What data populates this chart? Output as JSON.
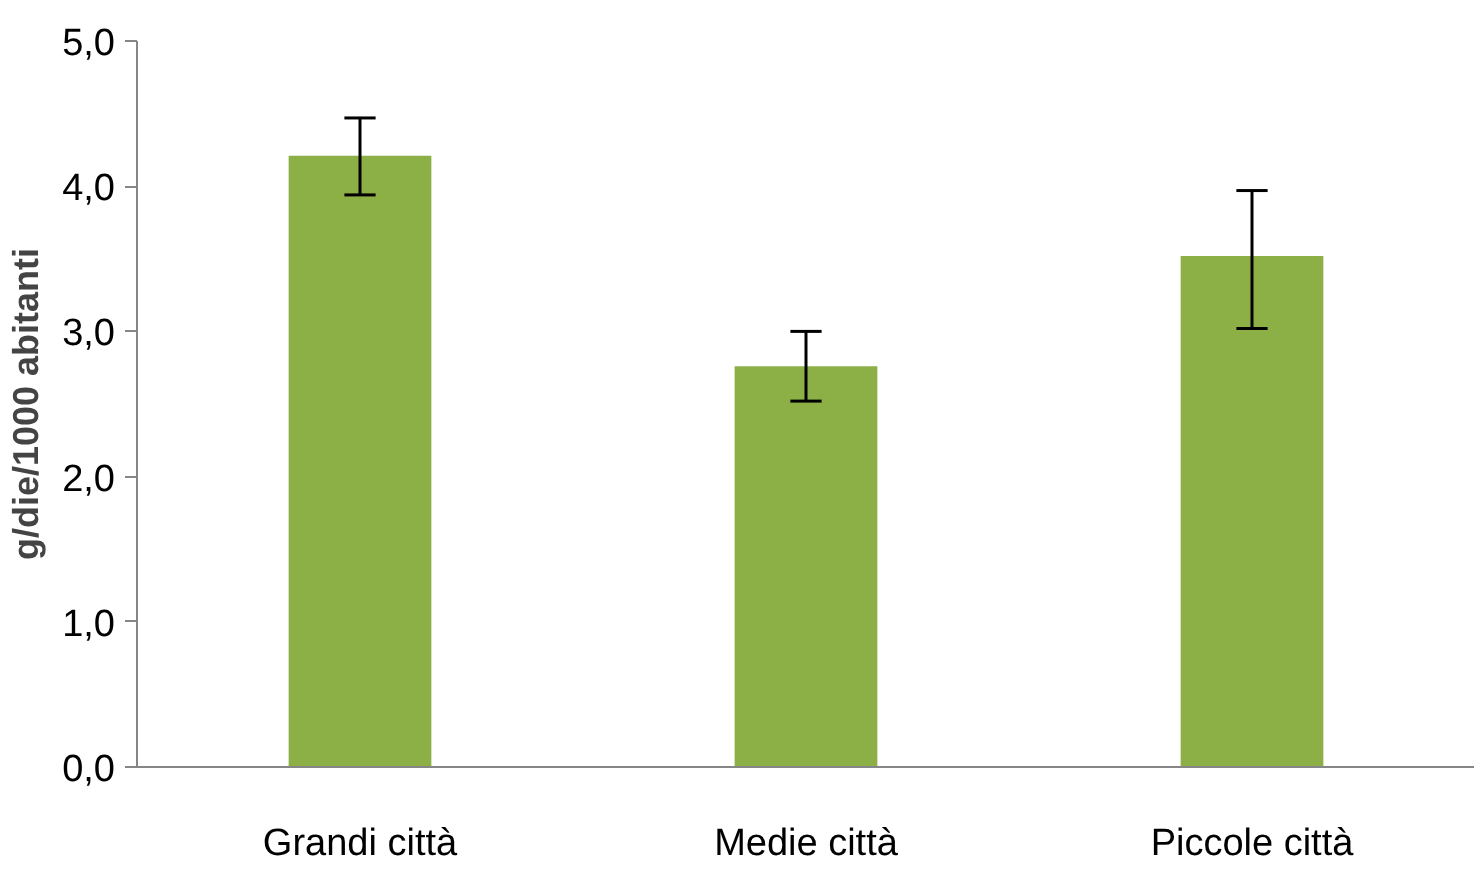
{
  "chart_data": {
    "type": "bar",
    "ylabel": "g/die/1000 abitanti",
    "categories": [
      "Grandi città",
      "Medie città",
      "Piccole città"
    ],
    "values": [
      4.21,
      2.76,
      3.52
    ],
    "errors": [
      [
        3.94,
        4.47
      ],
      [
        2.52,
        3.0
      ],
      [
        3.02,
        3.97
      ]
    ],
    "color": "#8cb046",
    "ylim": [
      0,
      5
    ],
    "yticks": [
      {
        "value": 0,
        "label": "0,0"
      },
      {
        "value": 1,
        "label": "1,0"
      },
      {
        "value": 2,
        "label": "2,0"
      },
      {
        "value": 3,
        "label": "3,0"
      },
      {
        "value": 4,
        "label": "4,0"
      },
      {
        "value": 5,
        "label": "5,0"
      }
    ],
    "grid": false
  }
}
